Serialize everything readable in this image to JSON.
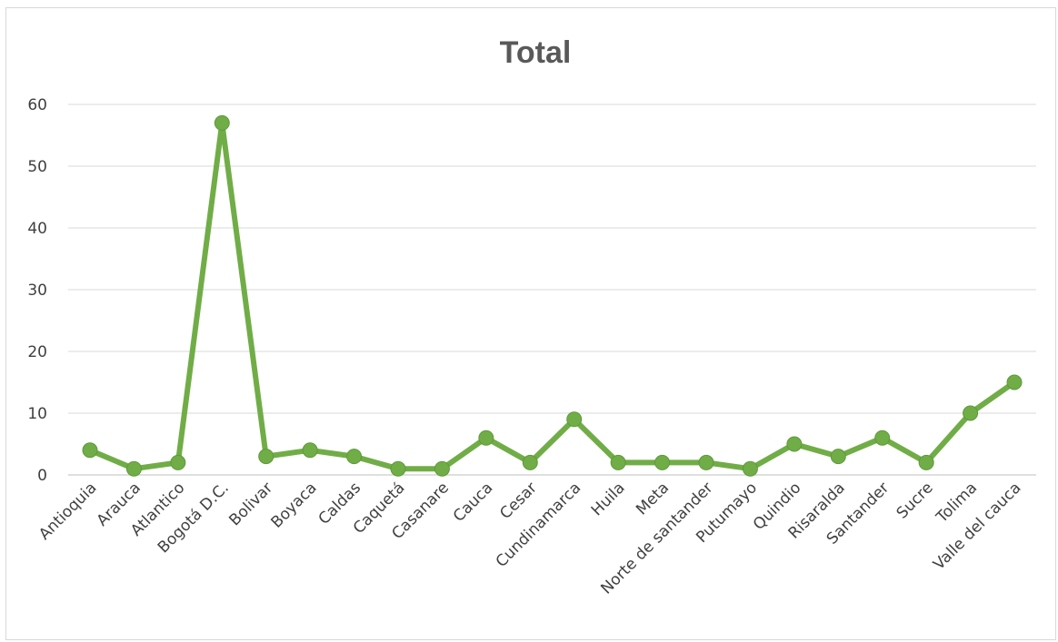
{
  "chart_data": {
    "type": "line",
    "title": "Total",
    "xlabel": "",
    "ylabel": "",
    "ylim": [
      0,
      60
    ],
    "yticks": [
      0,
      10,
      20,
      30,
      40,
      50,
      60
    ],
    "grid": true,
    "legend": "none",
    "line_color": "#70ad47",
    "marker_color": "#70ad47",
    "categories": [
      "Antioquia",
      "Arauca",
      "Atlantico",
      "Bogotá D.C.",
      "Bolivar",
      "Boyaca",
      "Caldas",
      "Caquetá",
      "Casanare",
      "Cauca",
      "Cesar",
      "Cundinamarca",
      "Huila",
      "Meta",
      "Norte de santander",
      "Putumayo",
      "Quindio",
      "Risaralda",
      "Santander",
      "Sucre",
      "Tolima",
      "Valle del cauca"
    ],
    "values": [
      4,
      1,
      2,
      57,
      3,
      4,
      3,
      1,
      1,
      6,
      2,
      9,
      2,
      2,
      2,
      1,
      5,
      3,
      6,
      2,
      10,
      15
    ]
  }
}
